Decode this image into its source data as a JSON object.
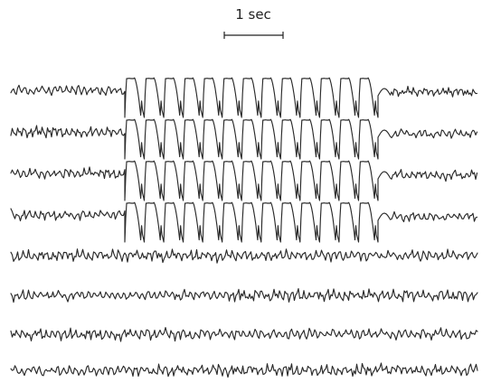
{
  "scale": {
    "label": "1 sec"
  },
  "trace_color": "#2a2a2a",
  "channels": [
    {
      "channel": 1,
      "spike_wave_burst": true
    },
    {
      "channel": 2,
      "spike_wave_burst": true
    },
    {
      "channel": 3,
      "spike_wave_burst": true
    },
    {
      "channel": 4,
      "spike_wave_burst": true
    },
    {
      "channel": 5,
      "spike_wave_burst": false
    },
    {
      "channel": 6,
      "spike_wave_burst": false
    },
    {
      "channel": 7,
      "spike_wave_burst": false
    },
    {
      "channel": 8,
      "spike_wave_burst": false
    }
  ],
  "burst": {
    "duration_sec": 4.3,
    "cycles": 13
  }
}
